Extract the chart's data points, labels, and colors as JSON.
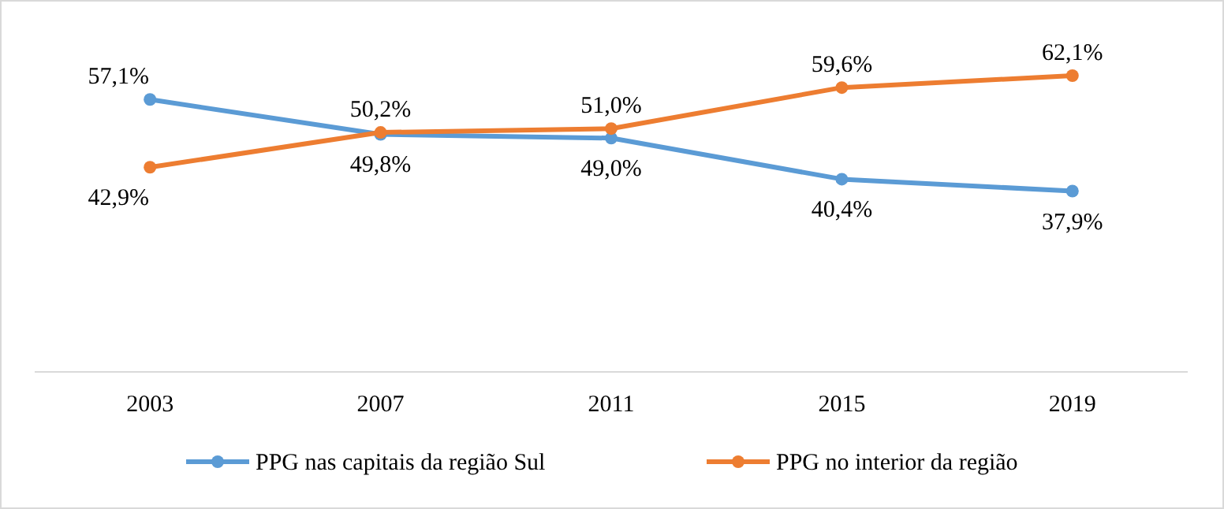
{
  "chart_data": {
    "type": "line",
    "categories": [
      "2003",
      "2007",
      "2011",
      "2015",
      "2019"
    ],
    "series": [
      {
        "name": "PPG nas capitais da região Sul",
        "color": "#5b9bd5",
        "values": [
          57.1,
          49.8,
          49.0,
          40.4,
          37.9
        ],
        "value_labels": [
          "57,1%",
          "49,8%",
          "49,0%",
          "40,4%",
          "37,9%"
        ]
      },
      {
        "name": "PPG no interior da região",
        "color": "#ed7d31",
        "values": [
          42.9,
          50.2,
          51.0,
          59.6,
          62.1
        ],
        "value_labels": [
          "42,9%",
          "50,2%",
          "51,0%",
          "59,6%",
          "62,1%"
        ]
      }
    ],
    "marker": "circle",
    "line_style": "solid",
    "legend": "bottom"
  }
}
